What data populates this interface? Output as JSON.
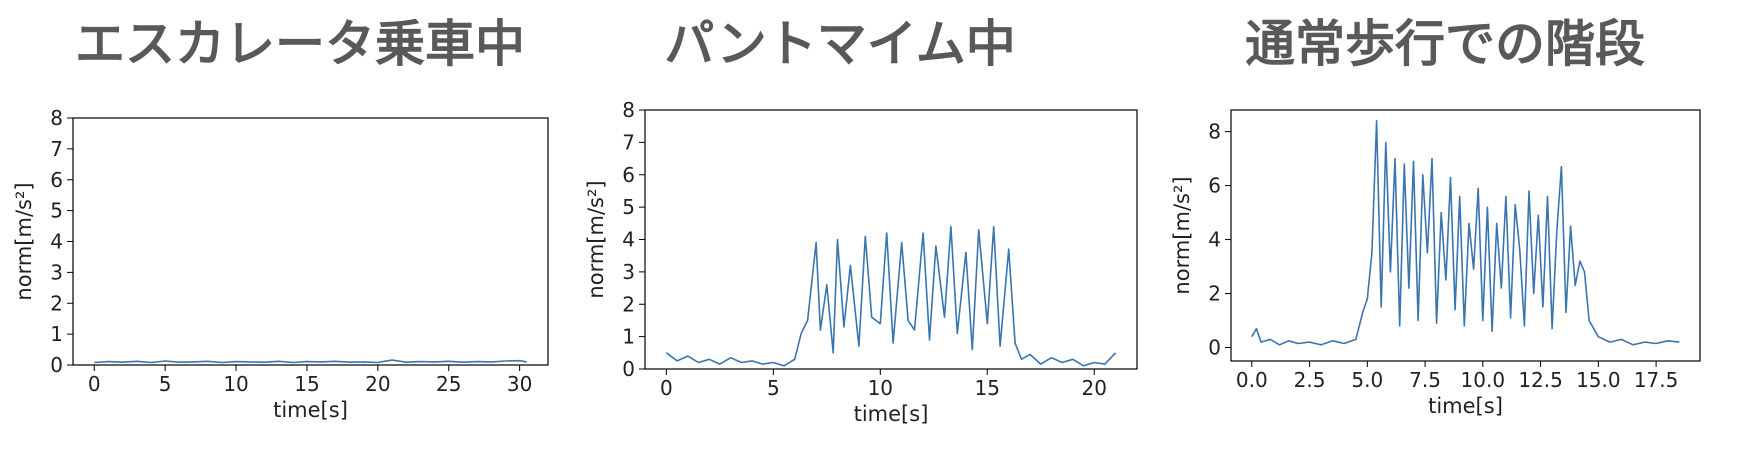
{
  "chart_data": [
    {
      "type": "line",
      "title": "エスカレータ乗車中",
      "xlabel": "time[s]",
      "ylabel": "norm[m/s²]",
      "xlim": [
        -1.5,
        32
      ],
      "ylim": [
        0,
        8
      ],
      "xticks": [
        0,
        5,
        10,
        15,
        20,
        25,
        30
      ],
      "xtick_labels": [
        "0",
        "5",
        "10",
        "15",
        "20",
        "25",
        "30"
      ],
      "yticks": [
        0,
        1,
        2,
        3,
        4,
        5,
        6,
        7,
        8
      ],
      "ytick_labels": [
        "0",
        "1",
        "2",
        "3",
        "4",
        "5",
        "6",
        "7",
        "8"
      ],
      "series": [
        {
          "name": "norm",
          "color": "#3a75b0",
          "x": [
            0,
            1,
            2,
            3,
            4,
            5,
            6,
            7,
            8,
            9,
            10,
            11,
            12,
            13,
            14,
            15,
            16,
            17,
            18,
            19,
            20,
            21,
            22,
            23,
            24,
            25,
            26,
            27,
            28,
            29,
            30,
            30.5
          ],
          "y": [
            0.08,
            0.11,
            0.09,
            0.12,
            0.08,
            0.13,
            0.09,
            0.1,
            0.12,
            0.08,
            0.11,
            0.1,
            0.09,
            0.12,
            0.08,
            0.11,
            0.1,
            0.12,
            0.09,
            0.1,
            0.08,
            0.16,
            0.09,
            0.11,
            0.1,
            0.12,
            0.09,
            0.11,
            0.1,
            0.13,
            0.14,
            0.1
          ]
        }
      ]
    },
    {
      "type": "line",
      "title": "パントマイム中",
      "xlabel": "time[s]",
      "ylabel": "norm[m/s²]",
      "xlim": [
        -1,
        22
      ],
      "ylim": [
        0,
        8
      ],
      "xticks": [
        0,
        5,
        10,
        15,
        20
      ],
      "xtick_labels": [
        "0",
        "5",
        "10",
        "15",
        "20"
      ],
      "yticks": [
        0,
        1,
        2,
        3,
        4,
        5,
        6,
        7,
        8
      ],
      "ytick_labels": [
        "0",
        "1",
        "2",
        "3",
        "4",
        "5",
        "6",
        "7",
        "8"
      ],
      "series": [
        {
          "name": "norm",
          "color": "#3a75b0",
          "x": [
            0,
            0.5,
            1,
            1.5,
            2,
            2.5,
            3,
            3.5,
            4,
            4.5,
            5,
            5.5,
            6,
            6.3,
            6.6,
            7,
            7.2,
            7.5,
            7.8,
            8,
            8.3,
            8.6,
            9,
            9.3,
            9.6,
            10,
            10.3,
            10.6,
            11,
            11.3,
            11.6,
            12,
            12.3,
            12.6,
            13,
            13.3,
            13.6,
            14,
            14.3,
            14.6,
            15,
            15.3,
            15.6,
            16,
            16.3,
            16.6,
            17,
            17.5,
            18,
            18.5,
            19,
            19.5,
            20,
            20.5,
            21
          ],
          "y": [
            0.5,
            0.25,
            0.4,
            0.2,
            0.3,
            0.15,
            0.35,
            0.2,
            0.25,
            0.15,
            0.2,
            0.1,
            0.3,
            1.1,
            1.5,
            3.9,
            1.2,
            2.6,
            0.5,
            4.0,
            1.3,
            3.2,
            0.7,
            4.1,
            1.6,
            1.4,
            4.2,
            0.8,
            3.9,
            1.5,
            1.2,
            4.2,
            0.9,
            3.8,
            1.6,
            4.4,
            1.1,
            3.6,
            0.6,
            4.3,
            1.4,
            4.4,
            0.7,
            3.7,
            0.8,
            0.3,
            0.45,
            0.15,
            0.35,
            0.2,
            0.3,
            0.1,
            0.2,
            0.15,
            0.5
          ]
        }
      ]
    },
    {
      "type": "line",
      "title": "通常歩行での階段",
      "xlabel": "time[s]",
      "ylabel": "norm[m/s²]",
      "xlim": [
        -0.9,
        19.4
      ],
      "ylim": [
        -0.5,
        8.8
      ],
      "xticks": [
        0,
        2.5,
        5,
        7.5,
        10,
        12.5,
        15,
        17.5
      ],
      "xtick_labels": [
        "0.0",
        "2.5",
        "5.0",
        "7.5",
        "10.0",
        "12.5",
        "15.0",
        "17.5"
      ],
      "yticks": [
        0,
        2,
        4,
        6,
        8
      ],
      "ytick_labels": [
        "0",
        "2",
        "4",
        "6",
        "8"
      ],
      "series": [
        {
          "name": "norm",
          "color": "#3a75b0",
          "x": [
            0,
            0.2,
            0.4,
            0.8,
            1.2,
            1.6,
            2,
            2.5,
            3,
            3.5,
            4,
            4.5,
            4.8,
            5,
            5.2,
            5.4,
            5.6,
            5.8,
            6,
            6.2,
            6.4,
            6.6,
            6.8,
            7,
            7.2,
            7.4,
            7.6,
            7.8,
            8,
            8.2,
            8.4,
            8.6,
            8.8,
            9,
            9.2,
            9.4,
            9.6,
            9.8,
            10,
            10.2,
            10.4,
            10.6,
            10.8,
            11,
            11.2,
            11.4,
            11.6,
            11.8,
            12,
            12.2,
            12.4,
            12.6,
            12.8,
            13,
            13.2,
            13.4,
            13.6,
            13.8,
            14,
            14.2,
            14.4,
            14.6,
            15,
            15.5,
            16,
            16.5,
            17,
            17.5,
            18,
            18.5
          ],
          "y": [
            0.4,
            0.7,
            0.2,
            0.3,
            0.1,
            0.25,
            0.15,
            0.2,
            0.1,
            0.25,
            0.15,
            0.3,
            1.3,
            1.8,
            3.5,
            8.4,
            1.5,
            7.6,
            2.8,
            7.0,
            0.8,
            6.8,
            2.2,
            6.9,
            1.0,
            6.4,
            3.5,
            7.0,
            0.9,
            5.0,
            2.5,
            6.3,
            1.4,
            5.6,
            0.8,
            4.6,
            2.9,
            5.9,
            1.0,
            5.2,
            0.6,
            4.6,
            2.2,
            5.6,
            1.1,
            5.3,
            3.6,
            0.8,
            5.8,
            2.0,
            4.9,
            1.5,
            5.6,
            0.7,
            4.3,
            6.7,
            1.3,
            4.5,
            2.3,
            3.2,
            2.8,
            1.0,
            0.4,
            0.2,
            0.3,
            0.1,
            0.2,
            0.15,
            0.25,
            0.2
          ]
        }
      ]
    }
  ]
}
